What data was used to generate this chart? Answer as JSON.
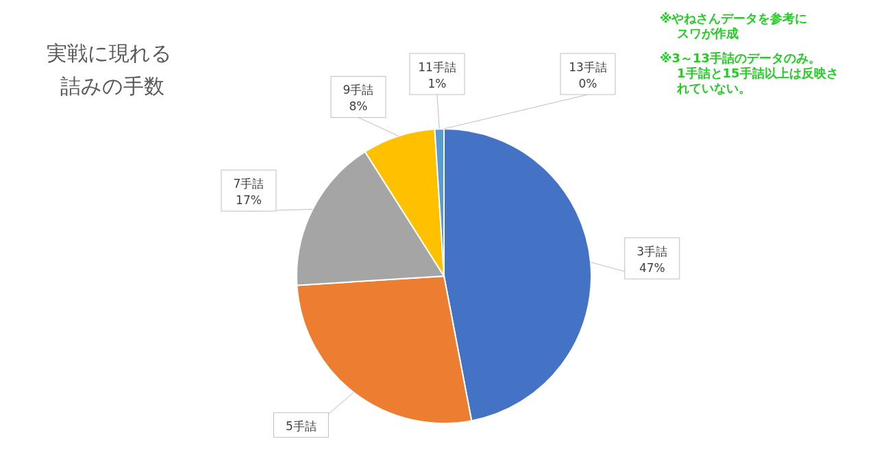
{
  "chart_data": {
    "type": "pie",
    "title": "実戦に現れる詰みの手数",
    "categories": [
      "3手詰",
      "5手詰",
      "7手詰",
      "9手詰",
      "11手詰",
      "13手詰"
    ],
    "values": [
      47,
      27,
      17,
      8,
      1,
      0
    ],
    "colors": [
      "#4472c4",
      "#ed7d31",
      "#a5a5a5",
      "#ffc000",
      "#5b9bd5",
      "#70ad47"
    ],
    "value_labels": [
      "47%",
      null,
      "17%",
      "8%",
      "1%",
      "0%"
    ],
    "legend": false,
    "annotations": [
      "※やねさんデータを参考にスワが作成",
      "※3～13手詰のデータのみ。1手詰と15手詰以上は反映されていない。"
    ]
  }
}
